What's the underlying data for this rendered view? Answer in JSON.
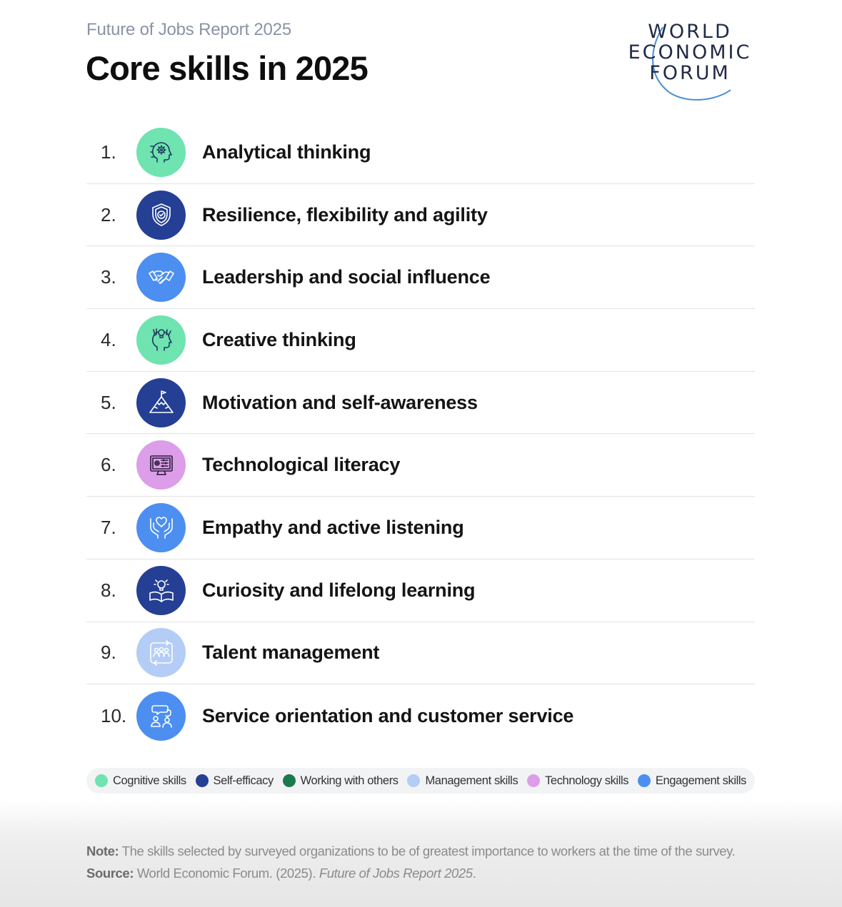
{
  "header": {
    "supertitle": "Future of Jobs Report 2025",
    "title": "Core skills in 2025"
  },
  "logo": {
    "line1": "WORLD",
    "line2": "ECONOMIC",
    "line3": "FORUM"
  },
  "skills": [
    {
      "rank": "1.",
      "label": "Analytical thinking",
      "icon": "head-gears-icon",
      "category": "Cognitive skills",
      "color": "#6fe3b0"
    },
    {
      "rank": "2.",
      "label": "Resilience, flexibility and agility",
      "icon": "shield-check-icon",
      "category": "Self-efficacy",
      "color": "#243f94"
    },
    {
      "rank": "3.",
      "label": "Leadership and social influence",
      "icon": "handshake-icon",
      "category": "Engagement skills",
      "color": "#4d8ff0"
    },
    {
      "rank": "4.",
      "label": "Creative thinking",
      "icon": "head-lightbulb-icon",
      "category": "Cognitive skills",
      "color": "#6fe3b0"
    },
    {
      "rank": "5.",
      "label": "Motivation and self-awareness",
      "icon": "mountain-flag-icon",
      "category": "Self-efficacy",
      "color": "#243f94"
    },
    {
      "rank": "6.",
      "label": "Technological literacy",
      "icon": "computer-monitor-icon",
      "category": "Technology skills",
      "color": "#dc9ee8"
    },
    {
      "rank": "7.",
      "label": "Empathy and active listening",
      "icon": "hands-heart-icon",
      "category": "Engagement skills",
      "color": "#4d8ff0"
    },
    {
      "rank": "8.",
      "label": "Curiosity and lifelong learning",
      "icon": "book-lightbulb-icon",
      "category": "Self-efficacy",
      "color": "#243f94"
    },
    {
      "rank": "9.",
      "label": "Talent management",
      "icon": "people-group-icon",
      "category": "Management skills",
      "color": "#b4cdf7"
    },
    {
      "rank": "10.",
      "label": "Service orientation and customer service",
      "icon": "chat-people-icon",
      "category": "Engagement skills",
      "color": "#4d8ff0"
    }
  ],
  "legend": [
    {
      "label": "Cognitive skills",
      "color": "#6fe3b0"
    },
    {
      "label": "Self-efficacy",
      "color": "#243f94"
    },
    {
      "label": "Working with others",
      "color": "#1a7a4c"
    },
    {
      "label": "Management skills",
      "color": "#b4cdf7"
    },
    {
      "label": "Technology skills",
      "color": "#dc9ee8"
    },
    {
      "label": "Engagement skills",
      "color": "#4d8ff0"
    }
  ],
  "footer": {
    "note_label": "Note:",
    "note_text": " The skills selected by surveyed organizations to be of greatest importance to workers at the time of the survey.",
    "source_label": "Source:",
    "source_text": " World Economic Forum. (2025). ",
    "source_italic": "Future of Jobs Report 2025",
    "source_end": "."
  }
}
